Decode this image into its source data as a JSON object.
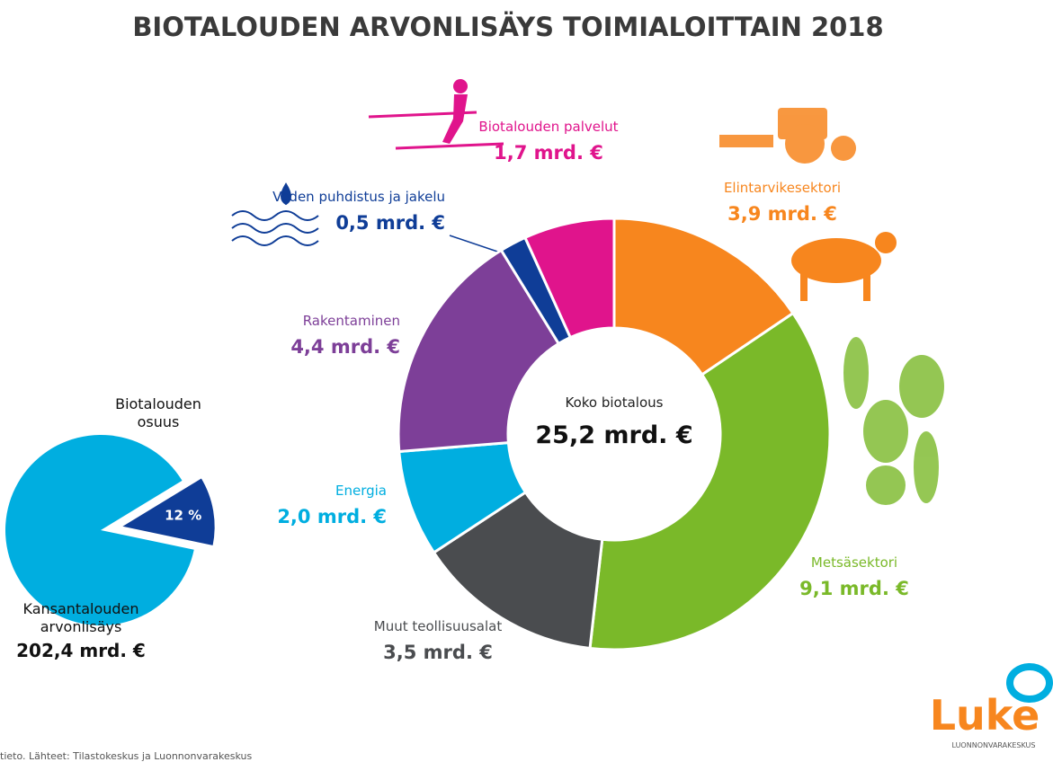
{
  "chart_data": [
    {
      "type": "donut",
      "title": "BIOTALOUDEN ARVONLISÄYS TOIMIALOITTAIN 2018",
      "categories": [
        "Elintarvikesektori",
        "Metsäsektori",
        "Muut teollisuusalat",
        "Energia",
        "Rakentaminen",
        "Veden puhdistus ja jakelu",
        "Biotalouden palvelut"
      ],
      "values": [
        3.9,
        9.1,
        3.5,
        2.0,
        4.4,
        0.5,
        1.7
      ],
      "value_labels": [
        "3,9 mrd. €",
        "9,1 mrd. €",
        "3,5 mrd. €",
        "2,0 mrd. €",
        "4,4 mrd. €",
        "0,5 mrd. €",
        "1,7 mrd. €"
      ],
      "colors": [
        "#f7861e",
        "#7ab929",
        "#4a4c4f",
        "#00aee0",
        "#7d3f98",
        "#0f3d97",
        "#e0148c"
      ],
      "center_label": "Koko biotalous",
      "total": 25.2,
      "total_label": "25,2 mrd. €"
    },
    {
      "type": "pie",
      "title": "Biotalouden osuus",
      "values": [
        12
      ],
      "value_labels": [
        "12 %"
      ],
      "colors": [
        "#0f3d97",
        "#00aee0"
      ],
      "total_name": "Kansantalouden arvonlisäys",
      "total": 202.4,
      "total_label": "202,4 mrd. €"
    }
  ],
  "source": "tieto. Lähteet: Tilastokeskus ja Luonnonvarakeskus",
  "logo": {
    "name": "Luke",
    "subtitle": "LUONNONVARAKESKUS"
  }
}
